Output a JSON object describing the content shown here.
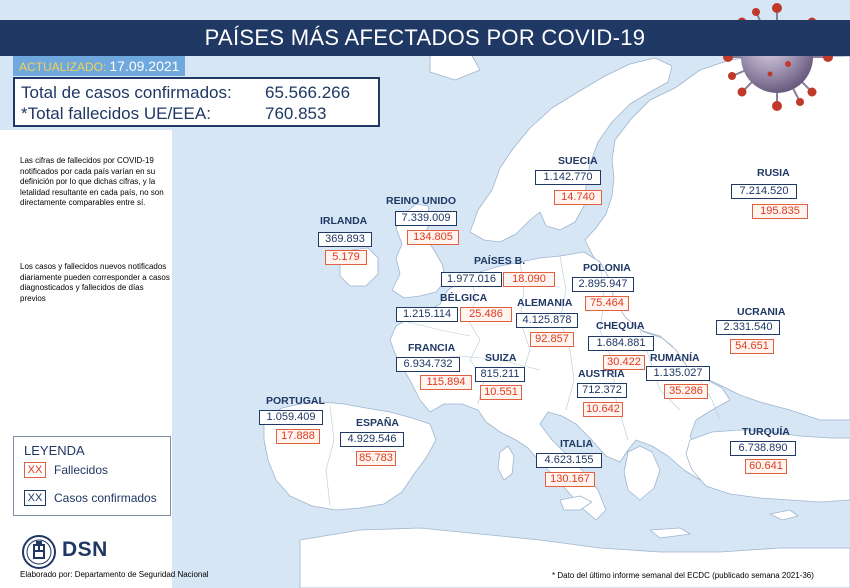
{
  "header": {
    "title": "PAÍSES MÁS AFECTADOS POR COVID-19"
  },
  "updated": {
    "label": "ACTUALIZADO:",
    "date": "17.09.2021"
  },
  "totals": {
    "cases_label": "Total de casos confirmados:",
    "cases_value": "65.566.266",
    "deaths_label": "*Total fallecidos UE/EEA:",
    "deaths_value": "760.853"
  },
  "notes": [
    "Las cifras de fallecidos por COVID-19 notificados por cada país varían en su definición por lo que dichas cifras, y la letalidad resultante en cada país, no son directamente comparables entre sí.",
    "Los casos y fallecidos nuevos notificados diariamente pueden corresponder a casos diagnosticados y fallecidos de días previos"
  ],
  "legend": {
    "title": "LEYENDA",
    "deaths_swatch": "XX",
    "deaths_label": "Fallecidos",
    "cases_swatch": "XX",
    "cases_label": "Casos confirmados"
  },
  "branding": {
    "logo_text": "DSN",
    "credit": "Elaborado por: Departamento de Seguridad Nacional"
  },
  "footnote": "* Dato del último informe semanal del ECDC (publicado semana 2021-36)",
  "colors": {
    "navy": "#1f3864",
    "red": "#e03a1e",
    "sea": "#d6e6f5",
    "land": "#ffffff"
  },
  "countries": {
    "suecia": {
      "name": "SUECIA",
      "cases": "1.142.770",
      "deaths": "14.740"
    },
    "rusia": {
      "name": "RUSIA",
      "cases": "7.214.520",
      "deaths": "195.835"
    },
    "reino_unido": {
      "name": "REINO UNIDO",
      "cases": "7.339.009",
      "deaths": "134.805"
    },
    "irlanda": {
      "name": "IRLANDA",
      "cases": "369.893",
      "deaths": "5.179"
    },
    "paises_b": {
      "name": "PAÍSES B.",
      "cases": "1.977.016",
      "deaths": "18.090"
    },
    "polonia": {
      "name": "POLONIA",
      "cases": "2.895.947",
      "deaths": "75.464"
    },
    "belgica": {
      "name": "BÉLGICA",
      "cases": "1.215.114",
      "deaths": "25.486"
    },
    "alemania": {
      "name": "ALEMANIA",
      "cases": "4.125.878",
      "deaths": "92.857"
    },
    "ucrania": {
      "name": "UCRANIA",
      "cases": "2.331.540",
      "deaths": "54.651"
    },
    "chequia": {
      "name": "CHEQUIA",
      "cases": "1.684.881",
      "deaths": "30.422"
    },
    "francia": {
      "name": "FRANCIA",
      "cases": "6.934.732",
      "deaths": "115.894"
    },
    "suiza": {
      "name": "SUIZA",
      "cases": "815.211",
      "deaths": "10.551"
    },
    "rumania": {
      "name": "RUMANÍA",
      "cases": "1.135.027",
      "deaths": "35.286"
    },
    "austria": {
      "name": "AUSTRIA",
      "cases": "712.372",
      "deaths": "10.642"
    },
    "portugal": {
      "name": "PORTUGAL",
      "cases": "1.059.409",
      "deaths": "17.888"
    },
    "espana": {
      "name": "ESPAÑA",
      "cases": "4.929.546",
      "deaths": "85.783"
    },
    "turquia": {
      "name": "TURQUÍA",
      "cases": "6.738.890",
      "deaths": "60.641"
    },
    "italia": {
      "name": "ITALIA",
      "cases": "4.623.155",
      "deaths": "130.167"
    }
  }
}
